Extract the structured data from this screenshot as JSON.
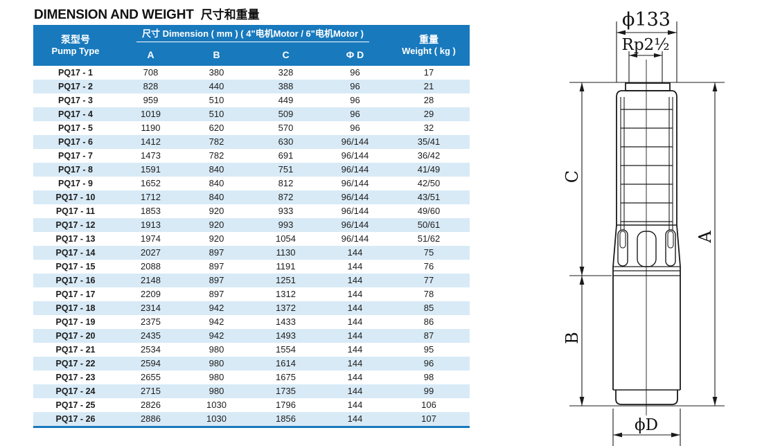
{
  "page": {
    "title_en": "DIMENSION AND WEIGHT",
    "title_zh": "尺寸和重量"
  },
  "table": {
    "header": {
      "pump_type_zh": "泵型号",
      "pump_type_en": "Pump Type",
      "dimension_group": "尺寸 Dimension ( mm ) ( 4\"电机Motor / 6\"电机Motor )",
      "columns": [
        "A",
        "B",
        "C",
        "Φ D"
      ],
      "weight_zh": "重量",
      "weight_en": "Weight ( kg )"
    },
    "rows": [
      {
        "model": "PQ17 - 1",
        "a": "708",
        "b": "380",
        "c": "328",
        "d": "96",
        "weight": "17"
      },
      {
        "model": "PQ17 - 2",
        "a": "828",
        "b": "440",
        "c": "388",
        "d": "96",
        "weight": "21"
      },
      {
        "model": "PQ17 - 3",
        "a": "959",
        "b": "510",
        "c": "449",
        "d": "96",
        "weight": "28"
      },
      {
        "model": "PQ17 - 4",
        "a": "1019",
        "b": "510",
        "c": "509",
        "d": "96",
        "weight": "29"
      },
      {
        "model": "PQ17 - 5",
        "a": "1190",
        "b": "620",
        "c": "570",
        "d": "96",
        "weight": "32"
      },
      {
        "model": "PQ17 - 6",
        "a": "1412",
        "b": "782",
        "c": "630",
        "d": "96/144",
        "weight": "35/41"
      },
      {
        "model": "PQ17 - 7",
        "a": "1473",
        "b": "782",
        "c": "691",
        "d": "96/144",
        "weight": "36/42"
      },
      {
        "model": "PQ17 - 8",
        "a": "1591",
        "b": "840",
        "c": "751",
        "d": "96/144",
        "weight": "41/49"
      },
      {
        "model": "PQ17 - 9",
        "a": "1652",
        "b": "840",
        "c": "812",
        "d": "96/144",
        "weight": "42/50"
      },
      {
        "model": "PQ17 - 10",
        "a": "1712",
        "b": "840",
        "c": "872",
        "d": "96/144",
        "weight": "43/51"
      },
      {
        "model": "PQ17 - 11",
        "a": "1853",
        "b": "920",
        "c": "933",
        "d": "96/144",
        "weight": "49/60"
      },
      {
        "model": "PQ17 - 12",
        "a": "1913",
        "b": "920",
        "c": "993",
        "d": "96/144",
        "weight": "50/61"
      },
      {
        "model": "PQ17 - 13",
        "a": "1974",
        "b": "920",
        "c": "1054",
        "d": "96/144",
        "weight": "51/62"
      },
      {
        "model": "PQ17 - 14",
        "a": "2027",
        "b": "897",
        "c": "1130",
        "d": "144",
        "weight": "75"
      },
      {
        "model": "PQ17 - 15",
        "a": "2088",
        "b": "897",
        "c": "1191",
        "d": "144",
        "weight": "76"
      },
      {
        "model": "PQ17 - 16",
        "a": "2148",
        "b": "897",
        "c": "1251",
        "d": "144",
        "weight": "77"
      },
      {
        "model": "PQ17 - 17",
        "a": "2209",
        "b": "897",
        "c": "1312",
        "d": "144",
        "weight": "78"
      },
      {
        "model": "PQ17 - 18",
        "a": "2314",
        "b": "942",
        "c": "1372",
        "d": "144",
        "weight": "85"
      },
      {
        "model": "PQ17 - 19",
        "a": "2375",
        "b": "942",
        "c": "1433",
        "d": "144",
        "weight": "86"
      },
      {
        "model": "PQ17 - 20",
        "a": "2435",
        "b": "942",
        "c": "1493",
        "d": "144",
        "weight": "87"
      },
      {
        "model": "PQ17 - 21",
        "a": "2534",
        "b": "980",
        "c": "1554",
        "d": "144",
        "weight": "95"
      },
      {
        "model": "PQ17 - 22",
        "a": "2594",
        "b": "980",
        "c": "1614",
        "d": "144",
        "weight": "96"
      },
      {
        "model": "PQ17 - 23",
        "a": "2655",
        "b": "980",
        "c": "1675",
        "d": "144",
        "weight": "98"
      },
      {
        "model": "PQ17 - 24",
        "a": "2715",
        "b": "980",
        "c": "1735",
        "d": "144",
        "weight": "99"
      },
      {
        "model": "PQ17 - 25",
        "a": "2826",
        "b": "1030",
        "c": "1796",
        "d": "144",
        "weight": "106"
      },
      {
        "model": "PQ17 - 26",
        "a": "2886",
        "b": "1030",
        "c": "1856",
        "d": "144",
        "weight": "107"
      }
    ]
  },
  "drawing": {
    "labels": {
      "top_diameter": "ϕ133",
      "port_thread": "Rp2½",
      "dim_c": "C",
      "dim_b": "B",
      "dim_a": "A",
      "bottom_diameter": "ϕD"
    }
  },
  "colors": {
    "header_blue": "#1879bd",
    "row_alt_blue": "#d8eaf6",
    "line_black": "#1a1a1a"
  }
}
